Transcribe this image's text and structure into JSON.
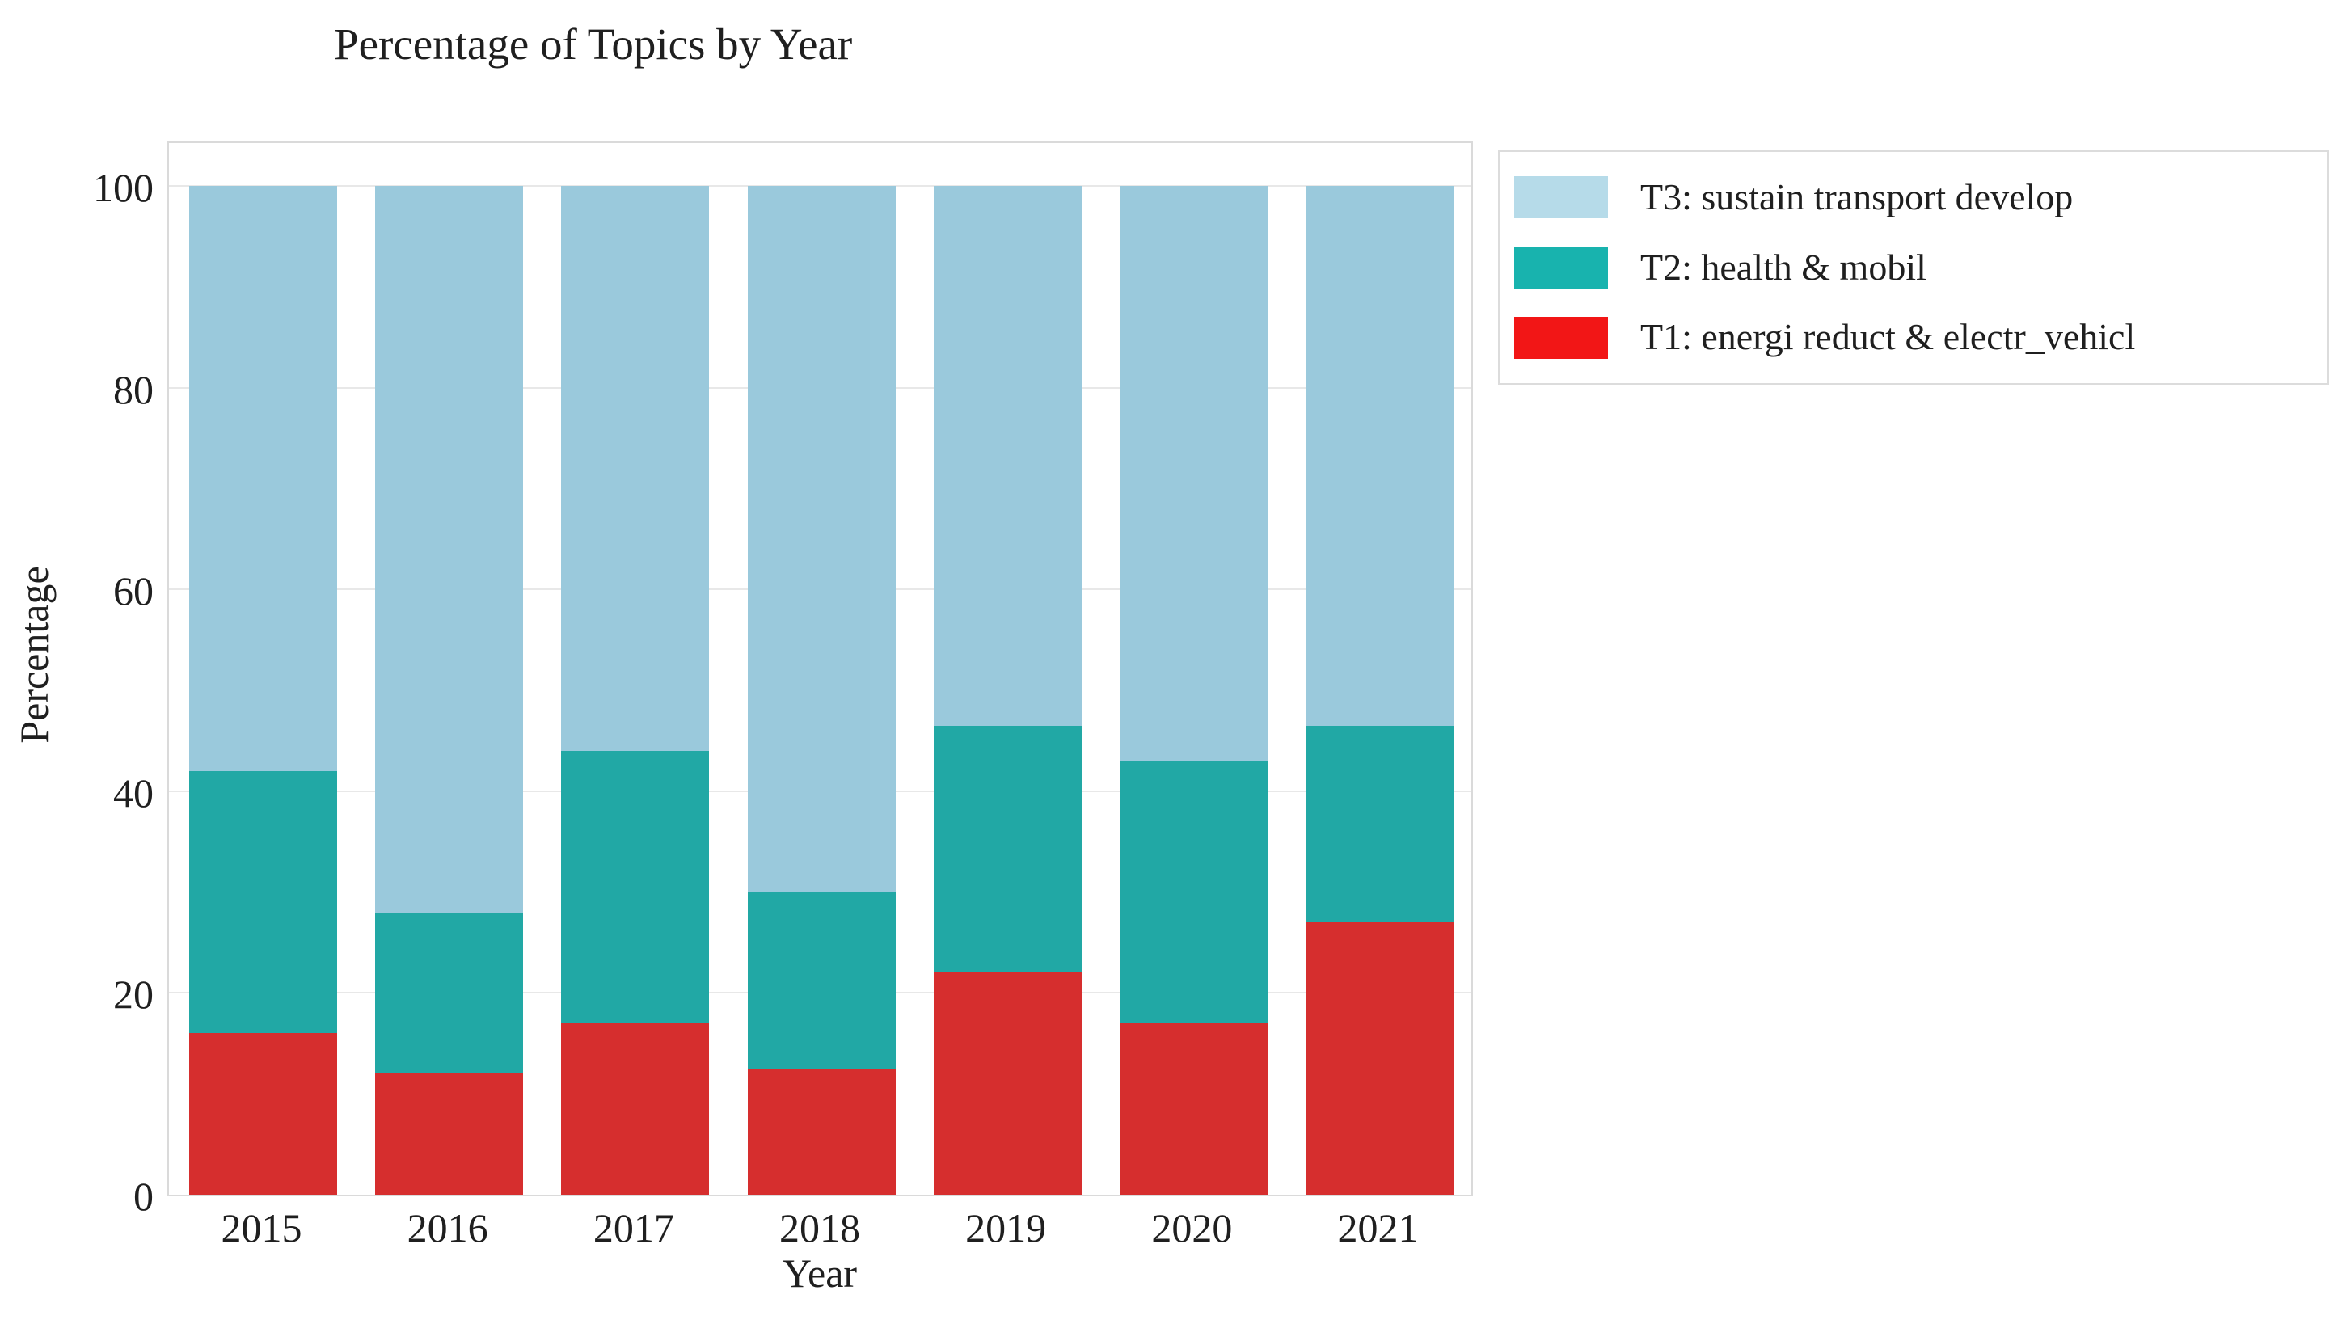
{
  "title": "Percentage of Topics by Year",
  "chart_data": {
    "type": "bar",
    "stacked": true,
    "title": "Percentage of Topics by Year",
    "xlabel": "Year",
    "ylabel": "Percentage",
    "categories": [
      "2015",
      "2016",
      "2017",
      "2018",
      "2019",
      "2020",
      "2021"
    ],
    "series": [
      {
        "name": "T1: energi reduct & electr_vehicl",
        "color": "#d62e2e",
        "values": [
          16,
          12,
          17,
          12.5,
          22,
          17,
          27
        ]
      },
      {
        "name": "T2: health & mobil",
        "color": "#21a8a5",
        "values": [
          26,
          16,
          27,
          17.5,
          24.5,
          26,
          19.5
        ]
      },
      {
        "name": "T3: sustain transport develop",
        "color": "#9ac9dc",
        "values": [
          58,
          72,
          56,
          70,
          53.5,
          57,
          53.5
        ]
      }
    ],
    "yticks": [
      0,
      20,
      40,
      60,
      80,
      100
    ],
    "ylim": [
      0,
      104.5
    ],
    "grid": "horizontal",
    "legend_position": "upper right, outside plot",
    "legend": {
      "entries": [
        {
          "label": "T3: sustain transport develop",
          "color": "#b6dbe9"
        },
        {
          "label": "T2: health & mobil",
          "color": "#18b3ae"
        },
        {
          "label": "T1: energi reduct & electr_vehicl",
          "color": "#f21616"
        }
      ]
    },
    "colors": {
      "grid": "#e8e8e8",
      "frame": "#dadada",
      "text": "#1f1f1f",
      "background": "#ffffff"
    }
  }
}
